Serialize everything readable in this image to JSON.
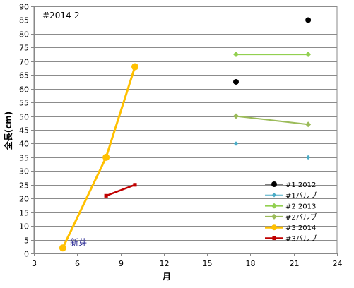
{
  "chart_data": {
    "type": "line",
    "chart_label": "#2014-2",
    "xlabel": "月",
    "ylabel": "全長(cm)",
    "xlim": [
      3,
      24
    ],
    "ylim": [
      0,
      90
    ],
    "x_ticks": [
      3,
      6,
      9,
      12,
      15,
      18,
      21,
      24
    ],
    "y_ticks": [
      0,
      5,
      10,
      15,
      20,
      25,
      30,
      35,
      40,
      45,
      50,
      55,
      60,
      65,
      70,
      75,
      80,
      85,
      90
    ],
    "grid": true,
    "legend_position": "bottom-right",
    "series": [
      {
        "name": "#1 2012",
        "color": "#000000",
        "marker": "circle",
        "line": false,
        "points": [
          [
            17,
            62.5
          ],
          [
            22,
            85
          ]
        ]
      },
      {
        "name": "#1バルブ",
        "color": "#4BACC6",
        "marker": "diamond",
        "line": false,
        "points": [
          [
            17,
            40
          ],
          [
            22,
            35
          ]
        ]
      },
      {
        "name": "#2 2013",
        "color": "#92D050",
        "marker": "diamond",
        "line": true,
        "points": [
          [
            17,
            72.5
          ],
          [
            22,
            72.5
          ]
        ]
      },
      {
        "name": "#2バルブ",
        "color": "#9BBB59",
        "marker": "diamond",
        "line": true,
        "points": [
          [
            17,
            50
          ],
          [
            22,
            47
          ]
        ]
      },
      {
        "name": "#3 2014",
        "color": "#FFC000",
        "marker": "circle",
        "line": true,
        "points": [
          [
            5,
            2
          ],
          [
            8,
            35
          ],
          [
            10,
            68
          ]
        ]
      },
      {
        "name": "#3バルブ",
        "color": "#C00000",
        "marker": "square",
        "line": true,
        "points": [
          [
            8,
            21
          ],
          [
            10,
            25
          ]
        ]
      }
    ],
    "annotations": [
      {
        "text": "新芽",
        "x": 5.5,
        "y": 3,
        "color": "#1F1F8F"
      }
    ]
  }
}
